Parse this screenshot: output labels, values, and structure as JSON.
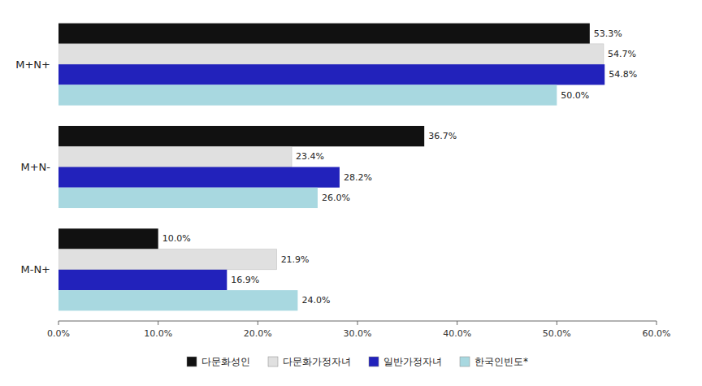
{
  "chart_data": {
    "type": "bar",
    "orientation": "horizontal",
    "categories": [
      "M+N+",
      "M+N-",
      "M-N+"
    ],
    "series": [
      {
        "name": "다문화성인",
        "color": "#111111",
        "values": [
          53.3,
          36.7,
          10.0
        ],
        "value_labels": [
          "53.3%",
          "36.7%",
          "10.0%"
        ]
      },
      {
        "name": "다문화가정자녀",
        "color": "#e0e0e0",
        "values": [
          54.7,
          23.4,
          21.9
        ],
        "value_labels": [
          "54.7%",
          "23.4%",
          "21.9%"
        ]
      },
      {
        "name": "일반가정자녀",
        "color": "#2222bb",
        "values": [
          54.8,
          28.2,
          16.9
        ],
        "value_labels": [
          "54.8%",
          "28.2%",
          "16.9%"
        ]
      },
      {
        "name": "한국인빈도*",
        "color": "#a8d8e0",
        "values": [
          50.0,
          26.0,
          24.0
        ],
        "value_labels": [
          "50.0%",
          "26.0%",
          "24.0%"
        ]
      }
    ],
    "xlim": [
      0,
      60
    ],
    "xticks": [
      {
        "value": 0,
        "label": "0.0%"
      },
      {
        "value": 10,
        "label": "10.0%"
      },
      {
        "value": 20,
        "label": "20.0%"
      },
      {
        "value": 30,
        "label": "30.0%"
      },
      {
        "value": 40,
        "label": "40.0%"
      },
      {
        "value": 50,
        "label": "50.0%"
      },
      {
        "value": 60,
        "label": "60.0%"
      }
    ],
    "data_labels": true,
    "grid": false,
    "legend": "bottom"
  }
}
